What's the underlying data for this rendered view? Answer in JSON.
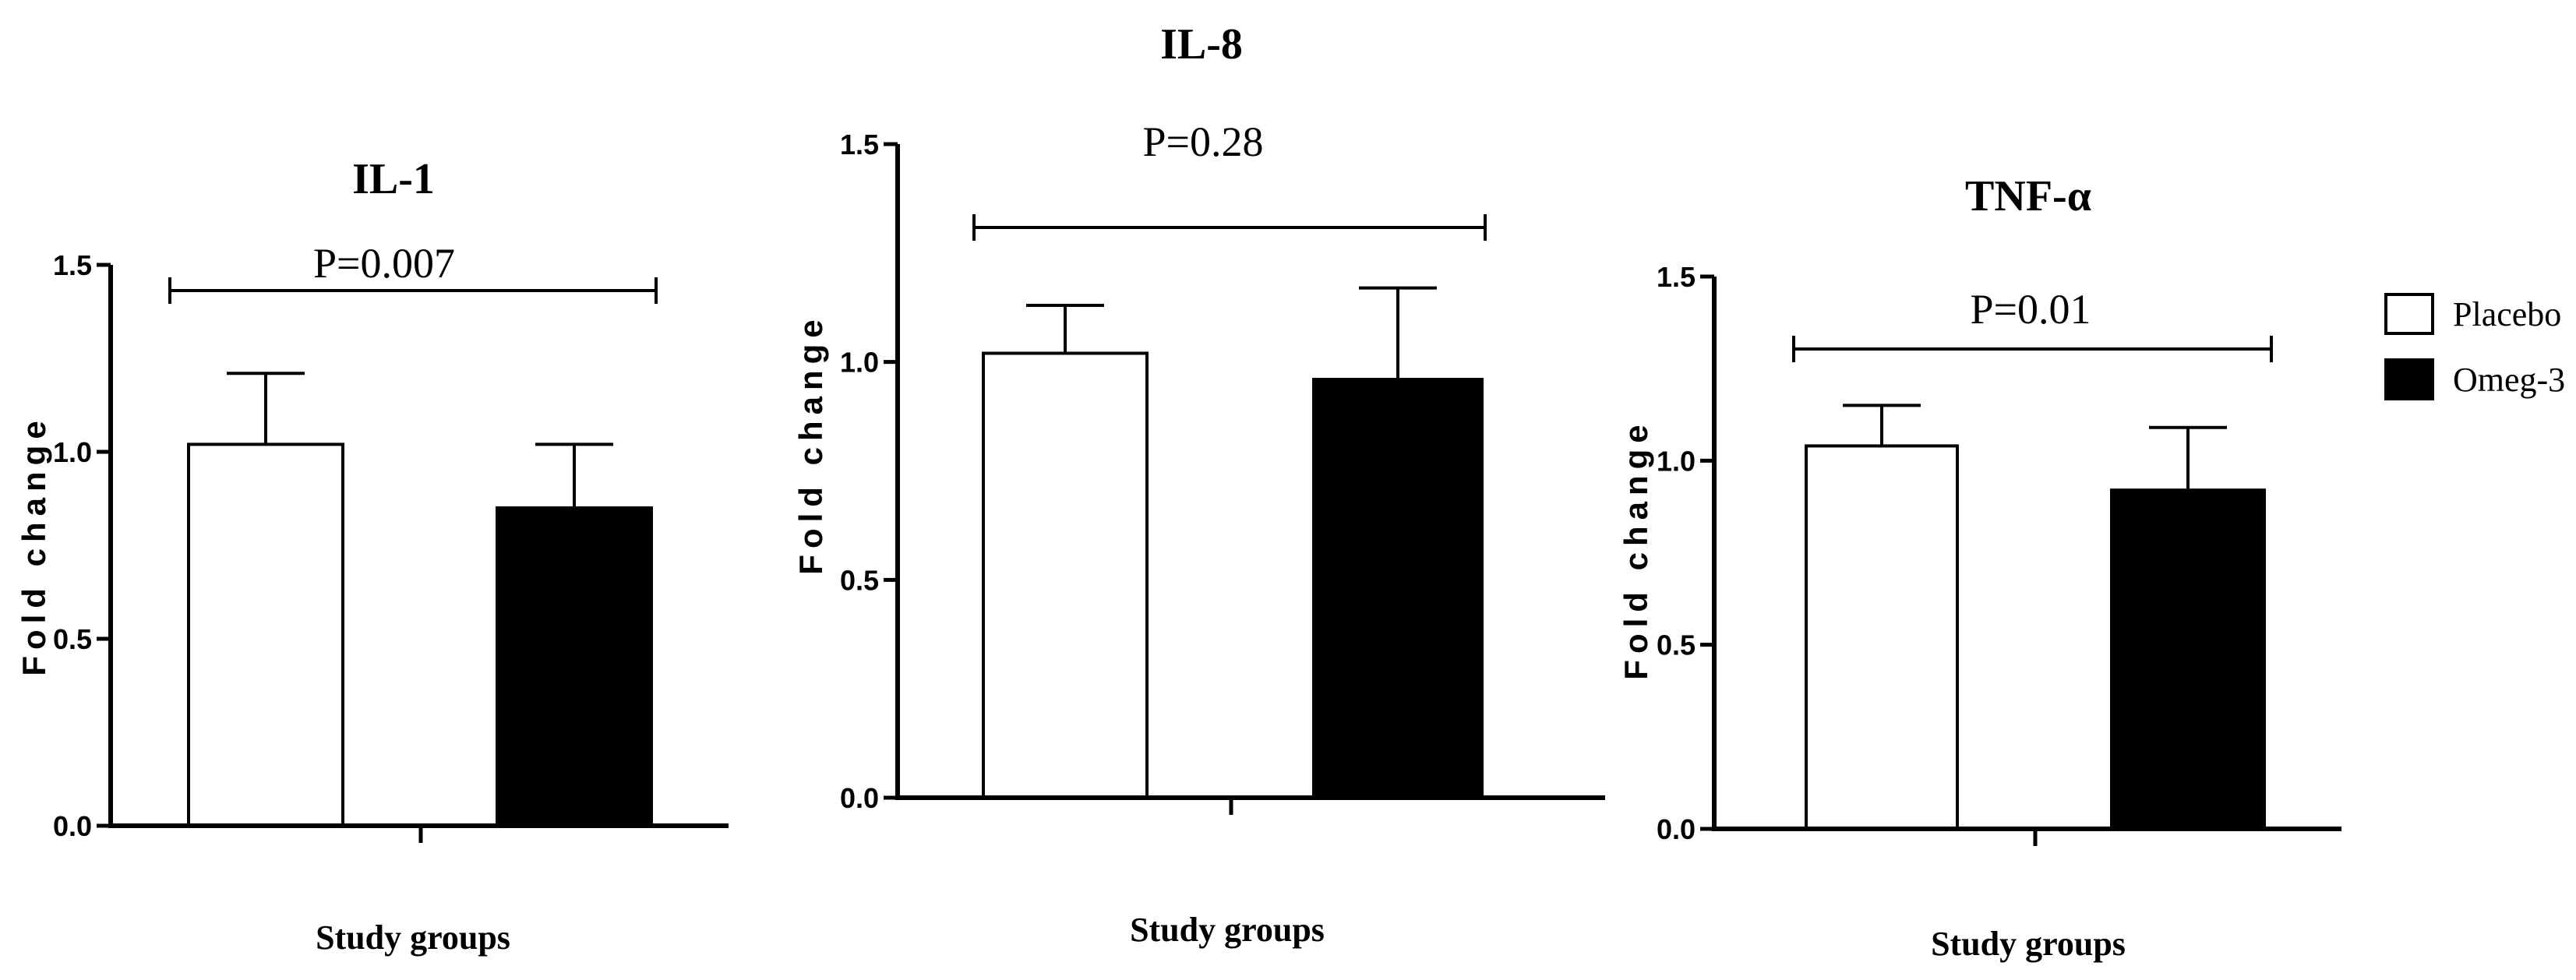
{
  "legend": {
    "entries": [
      {
        "label": "Placebo",
        "color": "#ffffff"
      },
      {
        "label": "Omeg-3",
        "color": "#000000"
      }
    ]
  },
  "chart_data": [
    {
      "type": "bar",
      "title": "IL-1",
      "annotation": "P=0.007",
      "xlabel": "Study groups",
      "ylabel": "Fold change",
      "ylim": [
        0,
        1.5
      ],
      "yticks": [
        "0.0",
        "0.5",
        "1.0",
        "1.5"
      ],
      "series": [
        {
          "name": "Placebo",
          "value": 1.02,
          "error": 0.19,
          "color": "#ffffff"
        },
        {
          "name": "Omeg-3",
          "value": 0.85,
          "error": 0.17,
          "color": "#000000"
        }
      ]
    },
    {
      "type": "bar",
      "title": "IL-8",
      "annotation": "P=0.28",
      "xlabel": "Study groups",
      "ylabel": "Fold change",
      "ylim": [
        0,
        1.5
      ],
      "yticks": [
        "0.0",
        "0.5",
        "1.0",
        "1.5"
      ],
      "series": [
        {
          "name": "Placebo",
          "value": 1.02,
          "error": 0.11,
          "color": "#ffffff"
        },
        {
          "name": "Omeg-3",
          "value": 0.96,
          "error": 0.21,
          "color": "#000000"
        }
      ]
    },
    {
      "type": "bar",
      "title": "TNF-α",
      "annotation": "P=0.01",
      "xlabel": "Study groups",
      "ylabel": "Fold change",
      "ylim": [
        0,
        1.5
      ],
      "yticks": [
        "0.0",
        "0.5",
        "1.0",
        "1.5"
      ],
      "series": [
        {
          "name": "Placebo",
          "value": 1.04,
          "error": 0.11,
          "color": "#ffffff"
        },
        {
          "name": "Omeg-3",
          "value": 0.92,
          "error": 0.17,
          "color": "#000000"
        }
      ]
    }
  ]
}
